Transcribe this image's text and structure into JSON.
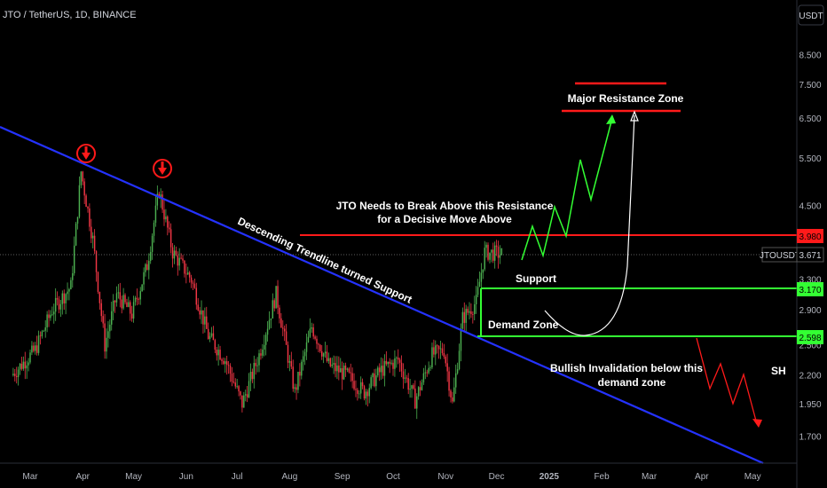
{
  "header": {
    "title": "JTO / TetherUS, 1D, BINANCE"
  },
  "currency_button": {
    "label": "USDT"
  },
  "price_tags": {
    "symbol": "JTOUSDT",
    "last": "3.671",
    "resistance": "3.980",
    "support": "3.170",
    "demand": "2.598"
  },
  "annotations": {
    "trendline": "Descending Trendline turned Support",
    "resistance_line1": "JTO Needs to Break Above this Resistance",
    "resistance_line2": "for a Decisive Move Above",
    "major_resistance": "Major Resistance Zone",
    "support": "Support",
    "demand": "Demand Zone",
    "invalidation_line1": "Bullish Invalidation below this",
    "invalidation_line2": "demand zone",
    "sh": "SH"
  },
  "colors": {
    "background": "#000000",
    "bull": "#4caf50",
    "bear": "#f23645",
    "trendline": "#2432ff",
    "resistance": "#ff1a1a",
    "support": "#33ff33",
    "axis_text": "#b2b5be"
  },
  "chart_data": {
    "type": "candlestick",
    "scale": "log",
    "ylim": [
      1.55,
      10.5
    ],
    "y_ticks": [
      "8.500",
      "7.500",
      "6.500",
      "5.500",
      "4.500",
      "3.980",
      "3.671",
      "3.300",
      "3.170",
      "2.900",
      "2.598",
      "2.500",
      "2.200",
      "1.950",
      "1.700"
    ],
    "x_ticks": [
      "Mar",
      "Apr",
      "May",
      "Jun",
      "Jul",
      "Aug",
      "Sep",
      "Oct",
      "Nov",
      "Dec",
      "2025",
      "Feb",
      "Mar",
      "Apr",
      "May"
    ],
    "price_path": [
      [
        "Feb 20",
        2.2
      ],
      [
        "Mar 5",
        2.45
      ],
      [
        "Mar 15",
        2.9
      ],
      [
        "Mar 26",
        3.2
      ],
      [
        "Apr 1",
        5.2
      ],
      [
        "Apr 8",
        3.9
      ],
      [
        "Apr 15",
        2.5
      ],
      [
        "Apr 22",
        3.1
      ],
      [
        "May 1",
        2.85
      ],
      [
        "May 10",
        3.5
      ],
      [
        "May 17",
        4.8
      ],
      [
        "May 25",
        3.7
      ],
      [
        "Jun 5",
        3.3
      ],
      [
        "Jun 15",
        2.6
      ],
      [
        "Jun 25",
        2.35
      ],
      [
        "Jul 5",
        1.95
      ],
      [
        "Jul 15",
        2.4
      ],
      [
        "Jul 25",
        3.1
      ],
      [
        "Aug 5",
        2.05
      ],
      [
        "Aug 15",
        2.7
      ],
      [
        "Aug 25",
        2.3
      ],
      [
        "Sep 5",
        2.2
      ],
      [
        "Sep 15",
        2.05
      ],
      [
        "Sep 25",
        2.25
      ],
      [
        "Oct 5",
        2.35
      ],
      [
        "Oct 15",
        1.98
      ],
      [
        "Oct 25",
        2.4
      ],
      [
        "Nov 1",
        2.45
      ],
      [
        "Nov 6",
        1.95
      ],
      [
        "Nov 12",
        2.8
      ],
      [
        "Nov 20",
        3.0
      ],
      [
        "Nov 25",
        3.7
      ],
      [
        "Dec 5",
        3.671
      ]
    ],
    "levels": [
      {
        "name": "resistance",
        "value": 3.98
      },
      {
        "name": "support",
        "value": 3.17
      },
      {
        "name": "demand",
        "value": 2.598
      }
    ],
    "major_resistance_zone": [
      6.8,
      7.5
    ]
  }
}
